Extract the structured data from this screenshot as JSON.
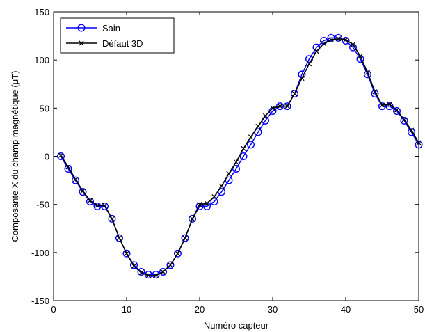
{
  "chart_data": {
    "type": "line",
    "title": "",
    "xlabel": "Numéro capteur",
    "ylabel": "Composante X du champ magnétique (μT)",
    "xlim": [
      0,
      50
    ],
    "ylim": [
      -150,
      150
    ],
    "xticks": [
      0,
      10,
      20,
      30,
      40,
      50
    ],
    "yticks": [
      -150,
      -100,
      -50,
      0,
      50,
      100,
      150
    ],
    "grid": false,
    "legend_position": "top-left",
    "x": [
      1,
      2,
      3,
      4,
      5,
      6,
      7,
      8,
      9,
      10,
      11,
      12,
      13,
      14,
      15,
      16,
      17,
      18,
      19,
      20,
      21,
      22,
      23,
      24,
      25,
      26,
      27,
      28,
      29,
      30,
      31,
      32,
      33,
      34,
      35,
      36,
      37,
      38,
      39,
      40,
      41,
      42,
      43,
      44,
      45,
      46,
      47,
      48,
      49,
      50
    ],
    "series": [
      {
        "name": "Sain",
        "color": "#0000ff",
        "marker": "circle",
        "values": [
          0,
          -13,
          -25,
          -37,
          -47,
          -52,
          -52,
          -65,
          -85,
          -101,
          -113,
          -120,
          -123,
          -123,
          -120,
          -113,
          -101,
          -85,
          -65,
          -52,
          -52,
          -47,
          -37,
          -25,
          -13,
          0,
          12,
          25,
          37,
          47,
          52,
          52,
          65,
          85,
          101,
          113,
          120,
          123,
          123,
          120,
          113,
          101,
          85,
          65,
          52,
          52,
          47,
          37,
          25,
          12
        ]
      },
      {
        "name": "Défaut 3D",
        "color": "#000000",
        "marker": "x",
        "values": [
          1,
          -11,
          -24,
          -36,
          -46,
          -51,
          -51,
          -65,
          -85,
          -101,
          -114,
          -121,
          -124,
          -124,
          -120,
          -113,
          -101,
          -85,
          -65,
          -50,
          -49,
          -42,
          -31,
          -18,
          -6,
          8,
          20,
          31,
          42,
          50,
          52,
          52,
          65,
          81,
          96,
          109,
          117,
          121,
          122,
          121,
          116,
          104,
          87,
          67,
          53,
          54,
          48,
          38,
          27,
          14
        ]
      }
    ]
  }
}
